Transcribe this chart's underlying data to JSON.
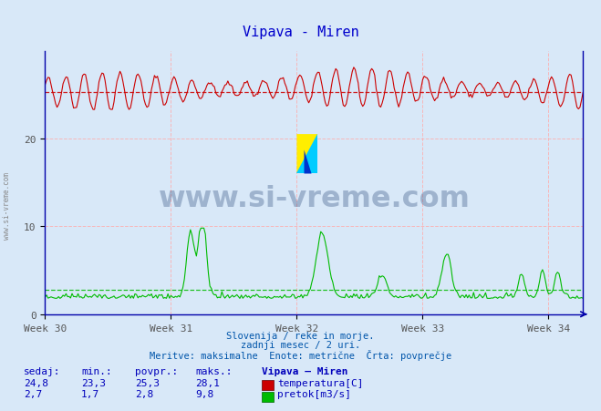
{
  "title": "Vipava - Miren",
  "title_color": "#0000cc",
  "bg_color": "#d8e8f8",
  "plot_bg_color": "#d8e8f8",
  "grid_color_h": "#ffaaaa",
  "grid_color_v": "#ffaaaa",
  "x_label_color": "#555555",
  "y_label_color": "#555555",
  "temp_color": "#cc0000",
  "flow_color": "#00bb00",
  "x_ticks": [
    0,
    84,
    168,
    252,
    336
  ],
  "x_tick_labels": [
    "Week 30",
    "Week 31",
    "Week 32",
    "Week 33",
    "Week 34"
  ],
  "y_ticks": [
    0,
    10,
    20
  ],
  "y_max": 30,
  "y_min": 0,
  "temp_min": 23.3,
  "temp_max": 28.1,
  "temp_avg": 25.3,
  "temp_current": 24.8,
  "flow_min": 1.7,
  "flow_max": 9.8,
  "flow_avg": 2.8,
  "flow_current": 2.7,
  "n_points": 360,
  "subtitle1": "Slovenija / reke in morje.",
  "subtitle2": "zadnji mesec / 2 uri.",
  "subtitle3": "Meritve: maksimalne  Enote: metrične  Črta: povprečje",
  "subtitle_color": "#0055aa",
  "label_header": "Vipava – Miren",
  "label_temp": "temperatura[C]",
  "label_flow": "pretok[m3/s]",
  "table_color": "#0000bb",
  "watermark": "www.si-vreme.com",
  "spine_color": "#0000aa"
}
